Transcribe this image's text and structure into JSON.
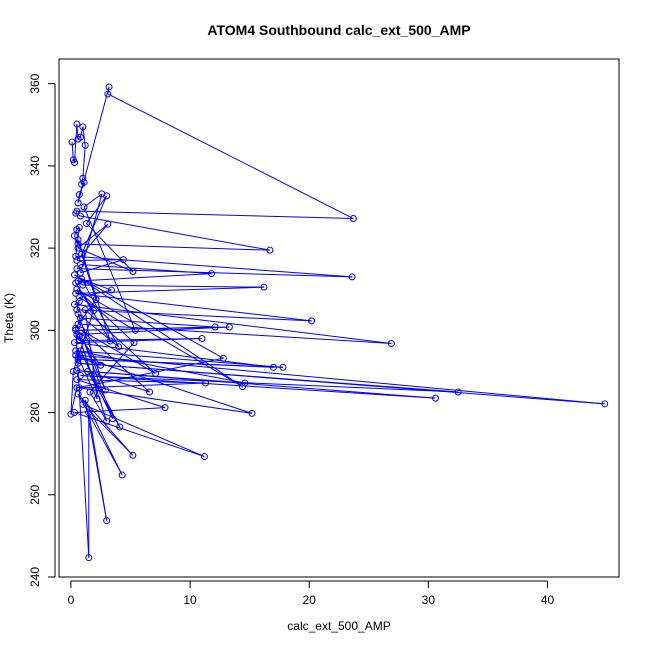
{
  "chart_data": {
    "type": "line",
    "title": "ATOM4 Southbound calc_ext_500_AMP",
    "xlabel": "calc_ext_500_AMP",
    "ylabel": "Theta (K)",
    "xlim": [
      -1,
      46
    ],
    "ylim": [
      240,
      366
    ],
    "x_ticks": [
      0,
      10,
      20,
      30,
      40
    ],
    "y_ticks": [
      240,
      260,
      280,
      300,
      320,
      340,
      360
    ],
    "x_tick_labels": [
      "0",
      "10",
      "20",
      "30",
      "40"
    ],
    "y_tick_labels": [
      "240",
      "260",
      "280",
      "300",
      "320",
      "340",
      "360"
    ],
    "grid": false,
    "line_color": "#0000ff",
    "marker": "open-circle",
    "series": [
      {
        "values_xy": [
          [
            0.1,
            345.8
          ],
          [
            0.2,
            341.5
          ],
          [
            0.3,
            340.8
          ],
          [
            0.5,
            350.2
          ],
          [
            0.6,
            346.5
          ],
          [
            0.8,
            347.0
          ],
          [
            1.0,
            349.5
          ],
          [
            1.2,
            345.0
          ],
          [
            1.0,
            337.0
          ],
          [
            0.9,
            335.5
          ],
          [
            1.1,
            336.0
          ],
          [
            0.7,
            333.0
          ],
          [
            0.6,
            331.0
          ],
          [
            3.2,
            359.2
          ],
          [
            3.1,
            357.5
          ],
          [
            23.7,
            327.2
          ],
          [
            0.5,
            329.0
          ],
          [
            0.4,
            328.5
          ],
          [
            0.8,
            327.8
          ],
          [
            16.7,
            319.5
          ],
          [
            0.6,
            321.0
          ],
          [
            0.3,
            323.0
          ],
          [
            0.5,
            324.5
          ],
          [
            0.7,
            325.0
          ],
          [
            0.4,
            318.0
          ],
          [
            23.6,
            313.0
          ],
          [
            0.5,
            315.0
          ],
          [
            0.8,
            316.0
          ],
          [
            11.8,
            313.8
          ],
          [
            0.6,
            312.0
          ],
          [
            1.0,
            311.0
          ],
          [
            16.2,
            310.5
          ],
          [
            0.4,
            309.0
          ],
          [
            20.2,
            302.3
          ],
          [
            0.5,
            305.0
          ],
          [
            0.7,
            307.0
          ],
          [
            0.3,
            306.3
          ],
          [
            26.9,
            296.8
          ],
          [
            0.6,
            301.5
          ],
          [
            0.8,
            303.0
          ],
          [
            12.1,
            300.8
          ],
          [
            0.4,
            300.0
          ],
          [
            13.3,
            300.8
          ],
          [
            0.5,
            299.0
          ],
          [
            0.7,
            297.5
          ],
          [
            11.0,
            298.0
          ],
          [
            0.3,
            297.0
          ],
          [
            17.0,
            291.0
          ],
          [
            0.6,
            293.0
          ],
          [
            17.8,
            291.0
          ],
          [
            0.4,
            295.0
          ],
          [
            14.6,
            287.2
          ],
          [
            0.5,
            290.2
          ],
          [
            30.6,
            283.5
          ],
          [
            0.8,
            289.0
          ],
          [
            32.5,
            285.0
          ],
          [
            0.6,
            292.0
          ],
          [
            44.8,
            282.1
          ],
          [
            0.4,
            294.0
          ],
          [
            15.2,
            279.8
          ],
          [
            0.7,
            286.0
          ],
          [
            11.3,
            287.2
          ],
          [
            0.5,
            288.0
          ],
          [
            7.9,
            281.2
          ],
          [
            0.3,
            280.0
          ],
          [
            11.2,
            269.3
          ],
          [
            1.0,
            282.0
          ],
          [
            5.2,
            269.6
          ],
          [
            0.6,
            284.5
          ],
          [
            4.3,
            264.8
          ],
          [
            1.2,
            283.0
          ],
          [
            3.0,
            253.7
          ],
          [
            1.5,
            280.0
          ],
          [
            1.5,
            244.7
          ],
          [
            0.4,
            300.5
          ],
          [
            2.1,
            307.5
          ],
          [
            0.9,
            318.5
          ],
          [
            3.0,
            332.7
          ],
          [
            1.3,
            326.0
          ],
          [
            5.2,
            314.3
          ],
          [
            0.6,
            320.0
          ],
          [
            3.1,
            325.8
          ],
          [
            0.5,
            317.0
          ],
          [
            4.4,
            317.2
          ],
          [
            0.8,
            314.0
          ],
          [
            2.6,
            333.2
          ],
          [
            1.1,
            330.0
          ],
          [
            5.4,
            300.0
          ],
          [
            0.7,
            308.0
          ],
          [
            3.4,
            309.8
          ],
          [
            0.9,
            312.5
          ],
          [
            4.0,
            296.0
          ],
          [
            0.6,
            304.0
          ],
          [
            2.9,
            285.5
          ],
          [
            1.0,
            298.0
          ],
          [
            3.5,
            278.5
          ],
          [
            0.8,
            295.0
          ],
          [
            4.1,
            276.5
          ],
          [
            1.4,
            290.0
          ],
          [
            6.6,
            285.0
          ],
          [
            0.9,
            300.0
          ],
          [
            7.1,
            289.5
          ],
          [
            1.2,
            305.0
          ],
          [
            2.2,
            283.3
          ],
          [
            0.6,
            293.5
          ],
          [
            2.5,
            291.5
          ],
          [
            0.7,
            298.5
          ],
          [
            3.0,
            277.9
          ],
          [
            1.6,
            285.0
          ],
          [
            5.3,
            297.0
          ],
          [
            0.5,
            310.0
          ],
          [
            14.4,
            286.3
          ],
          [
            0.3,
            313.5
          ],
          [
            12.8,
            293.2
          ],
          [
            0.5,
            286.0
          ],
          [
            0.0,
            279.6
          ],
          [
            0.2,
            290.0
          ],
          [
            1.9,
            304.8
          ],
          [
            0.4,
            311.5
          ],
          [
            3.3,
            297.4
          ],
          [
            0.6,
            322.0
          ]
        ]
      }
    ]
  }
}
